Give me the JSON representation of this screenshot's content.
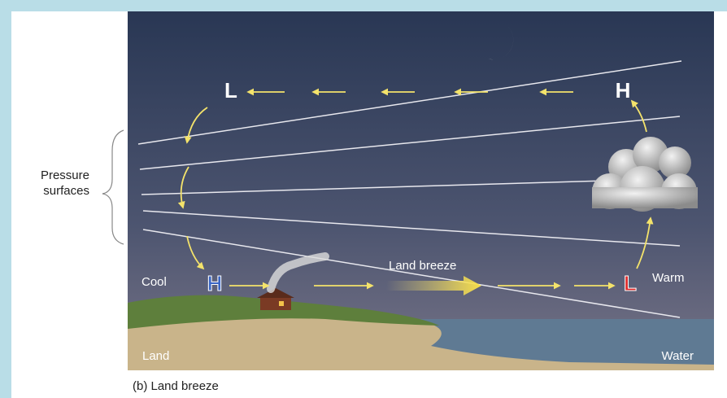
{
  "diagram": {
    "pressure_label": [
      "Pressure",
      "surfaces"
    ],
    "upper_low": "L",
    "upper_high": "H",
    "surface_high": "H",
    "surface_low": "L",
    "cool": "Cool",
    "warm": "Warm",
    "land": "Land",
    "water": "Water",
    "flow_label": "Land breeze"
  },
  "caption": "(b) Land breeze"
}
